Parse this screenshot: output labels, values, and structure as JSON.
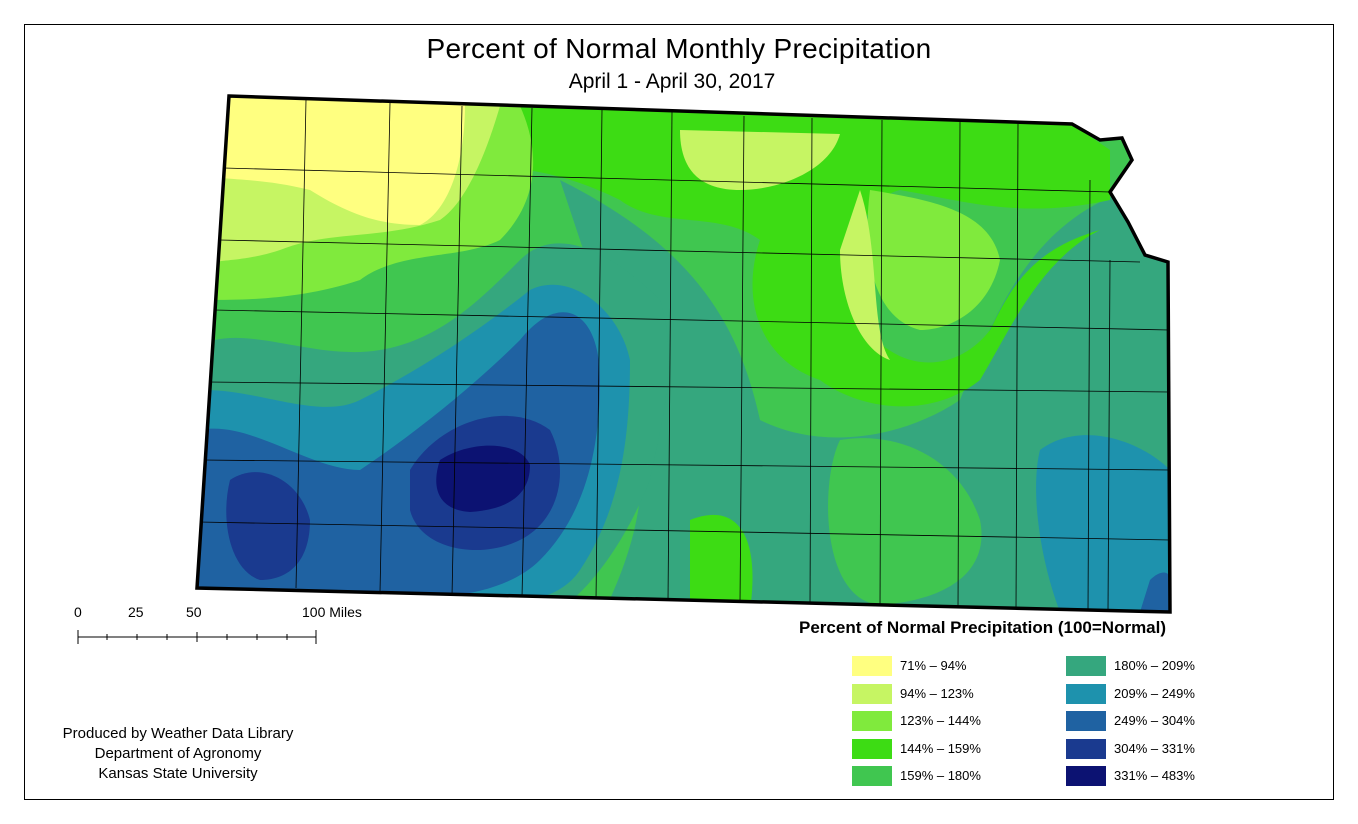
{
  "title": "Percent of Normal Monthly Precipitation",
  "subtitle": "April 1 - April 30, 2017",
  "scale_bar": {
    "labels": [
      "0",
      "25",
      "50",
      "100 Miles"
    ]
  },
  "credit": {
    "line1": "Produced by Weather Data Library",
    "line2": "Department of Agronomy",
    "line3": "Kansas State University"
  },
  "legend": {
    "title": "Percent of Normal Precipitation (100=Normal)",
    "items": [
      {
        "label": "71% – 94%",
        "color": "#ffff80"
      },
      {
        "label": "94% – 123%",
        "color": "#c6f563"
      },
      {
        "label": "123% – 144%",
        "color": "#80ea3d"
      },
      {
        "label": "144% – 159%",
        "color": "#3ddc14"
      },
      {
        "label": "159% – 180%",
        "color": "#40c650"
      },
      {
        "label": "180% – 209%",
        "color": "#35a77e"
      },
      {
        "label": "209% – 249%",
        "color": "#1e92ad"
      },
      {
        "label": "249% – 304%",
        "color": "#1f62a2"
      },
      {
        "label": "304% – 331%",
        "color": "#1a3a8f"
      },
      {
        "label": "331% – 483%",
        "color": "#0c1272"
      }
    ]
  }
}
